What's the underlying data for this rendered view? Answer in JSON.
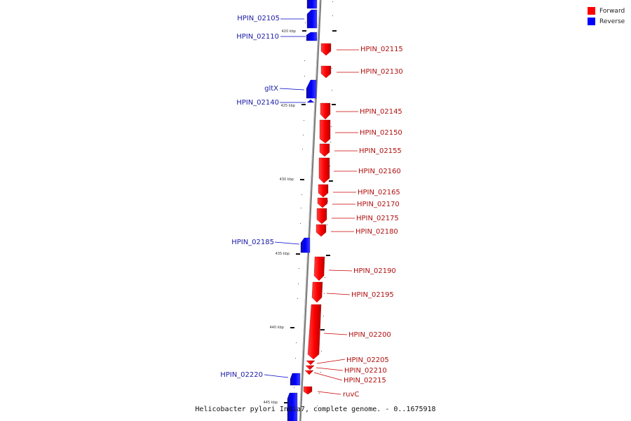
{
  "legend": {
    "forward_label": "Forward",
    "reverse_label": "Reverse",
    "forward_color": "#ff0000",
    "reverse_color": "#0000ff"
  },
  "caption": "Helicobacter pylori India7, complete genome. - 0..1675918",
  "scale_labels": [
    "420 kbp",
    "425 kbp",
    "430 kbp",
    "435 kbp",
    "440 kbp",
    "445 kbp"
  ],
  "genes_reverse": [
    "HPIN_02105",
    "HPIN_02110",
    "gltX",
    "HPIN_02140",
    "HPIN_02185",
    "HPIN_02220"
  ],
  "genes_forward": [
    "HPIN_02115",
    "HPIN_02130",
    "HPIN_02145",
    "HPIN_02150",
    "HPIN_02155",
    "HPIN_02160",
    "HPIN_02165",
    "HPIN_02170",
    "HPIN_02175",
    "HPIN_02180",
    "HPIN_02190",
    "HPIN_02195",
    "HPIN_02200",
    "HPIN_02205",
    "HPIN_02210",
    "HPIN_02215",
    "ruvC"
  ]
}
